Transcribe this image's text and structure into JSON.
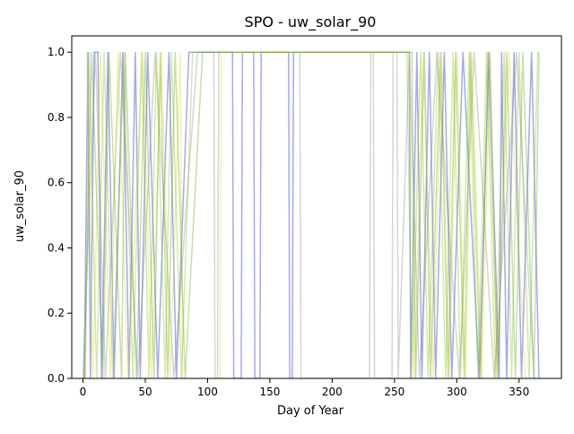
{
  "chart_data": {
    "type": "line",
    "title": "SPO - uw_solar_90",
    "xlabel": "Day of Year",
    "ylabel": "uw_solar_90",
    "xlim": [
      -9,
      384
    ],
    "ylim": [
      0.0,
      1.05
    ],
    "xticks": [
      0,
      50,
      100,
      150,
      200,
      250,
      300,
      350
    ],
    "xtick_labels": [
      "0",
      "50",
      "100",
      "150",
      "200",
      "250",
      "300",
      "350"
    ],
    "yticks": [
      0.0,
      0.2,
      0.4,
      0.6,
      0.8,
      1.0
    ],
    "ytick_labels": [
      "0.0",
      "0.2",
      "0.4",
      "0.6",
      "0.8",
      "1.0"
    ],
    "grid": false,
    "legend": "none",
    "line_alpha": 0.35,
    "series": [
      {
        "color": "#0000ee",
        "x": [
          1,
          4,
          6,
          9,
          12,
          15,
          20,
          25,
          32,
          37,
          42,
          46,
          52,
          60,
          69,
          75,
          85,
          92,
          97,
          100,
          120,
          121,
          127,
          128,
          137,
          138,
          142,
          143,
          165,
          166,
          168,
          169,
          262,
          263,
          268,
          272,
          278,
          283,
          290,
          296,
          305,
          318,
          326,
          334,
          336,
          340,
          346,
          352,
          360,
          366
        ],
        "values": [
          0,
          1,
          0,
          1,
          1,
          0,
          1,
          0,
          1,
          0,
          1,
          0,
          1,
          0,
          1,
          0,
          1,
          1,
          1,
          1,
          1,
          0,
          0,
          1,
          1,
          0,
          0,
          1,
          1,
          0,
          0,
          1,
          1,
          0,
          1,
          0,
          1,
          0,
          1,
          0,
          1,
          0,
          1,
          0,
          1,
          0,
          1,
          0,
          1,
          0
        ]
      },
      {
        "color": "#888888",
        "x": [
          0,
          10,
          18,
          30,
          44,
          58,
          73,
          92,
          105,
          106,
          108,
          109,
          174,
          175,
          230,
          231,
          233,
          234,
          248,
          249,
          252,
          253,
          262,
          270,
          284,
          302,
          314,
          330,
          348,
          362
        ],
        "values": [
          0,
          1,
          0,
          1,
          0,
          1,
          0,
          1,
          1,
          0,
          0,
          1,
          1,
          0,
          0,
          1,
          1,
          0,
          0,
          1,
          1,
          0,
          1,
          0,
          1,
          0,
          1,
          0,
          1,
          0
        ]
      },
      {
        "color": "#dddd00",
        "x": [
          3,
          8,
          14,
          22,
          28,
          36,
          48,
          55,
          63,
          70,
          78,
          80,
          110,
          111,
          262,
          266,
          273,
          281,
          288,
          294,
          300,
          307,
          312,
          320,
          327,
          332,
          342,
          355
        ],
        "values": [
          1,
          0,
          1,
          0,
          1,
          0,
          1,
          0,
          1,
          0,
          1,
          0,
          0,
          1,
          1,
          0,
          1,
          0,
          1,
          0,
          1,
          0,
          1,
          0,
          1,
          0,
          1,
          0
        ]
      },
      {
        "color": "#88bb22",
        "x": [
          2,
          5,
          11,
          17,
          24,
          33,
          40,
          47,
          53,
          59,
          66,
          71,
          79,
          88,
          99,
          260,
          264,
          271,
          277,
          285,
          291,
          297,
          303,
          310,
          317,
          324,
          331,
          338,
          344,
          350,
          358,
          365
        ],
        "values": [
          0,
          1,
          0,
          1,
          0,
          1,
          0,
          1,
          0,
          1,
          0,
          1,
          0,
          1,
          1,
          1,
          0,
          1,
          0,
          1,
          0,
          1,
          0,
          1,
          0,
          1,
          0,
          1,
          0,
          1,
          0,
          1
        ]
      },
      {
        "color": "#55aa00",
        "x": [
          1,
          7,
          16,
          21,
          31,
          34,
          43,
          50,
          57,
          62,
          68,
          74,
          82,
          96,
          264,
          267,
          274,
          279,
          287,
          293,
          299,
          306,
          311,
          319,
          325,
          333,
          340,
          347,
          353,
          362,
          366
        ],
        "values": [
          0,
          1,
          0,
          1,
          0,
          1,
          0,
          1,
          0,
          1,
          0,
          1,
          0,
          1,
          1,
          0,
          1,
          0,
          1,
          0,
          1,
          0,
          1,
          0,
          1,
          0,
          1,
          0,
          1,
          0,
          1
        ]
      }
    ]
  }
}
